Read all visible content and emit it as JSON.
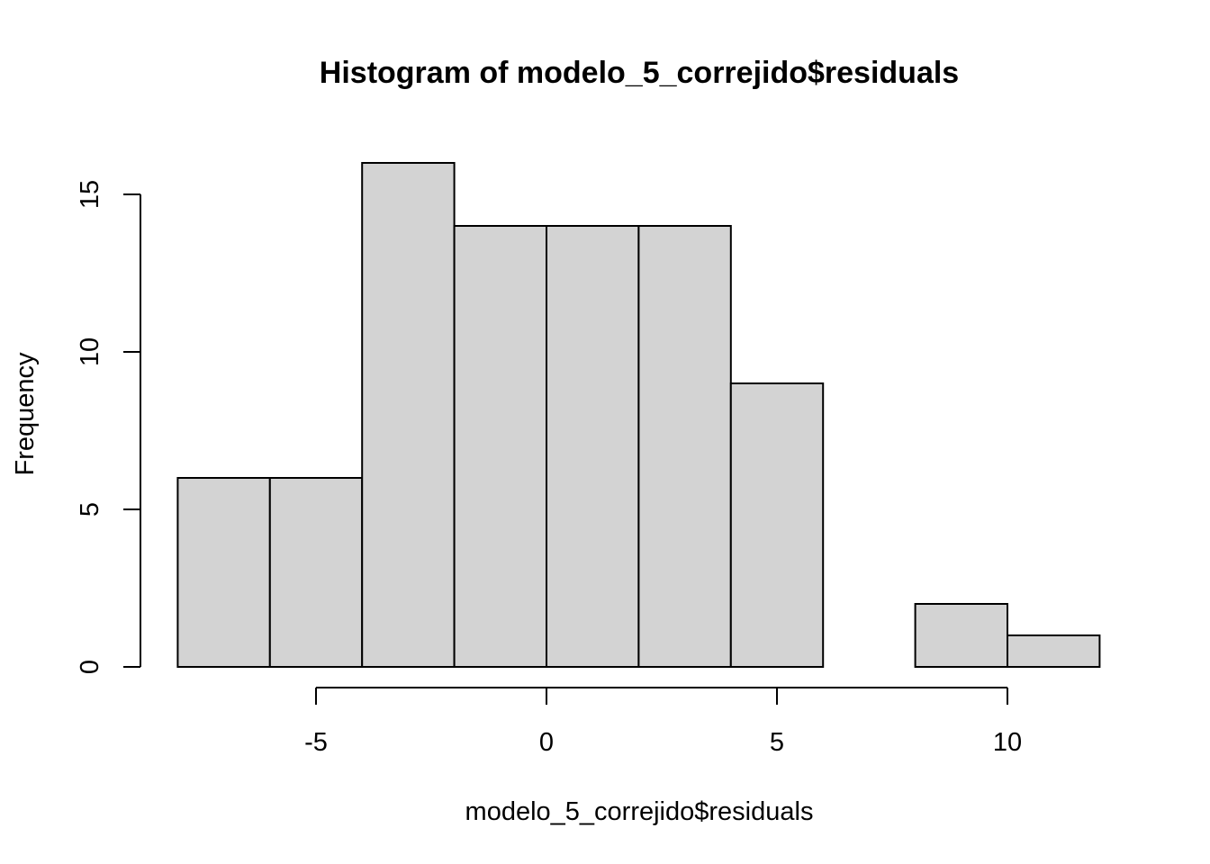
{
  "chart_data": {
    "type": "bar",
    "title": "Histogram of modelo_5_correjido$residuals",
    "xlabel": "modelo_5_correjido$residuals",
    "ylabel": "Frequency",
    "bins": [
      {
        "x0": -8,
        "x1": -6,
        "count": 6
      },
      {
        "x0": -6,
        "x1": -4,
        "count": 6
      },
      {
        "x0": -4,
        "x1": -2,
        "count": 16
      },
      {
        "x0": -2,
        "x1": 0,
        "count": 14
      },
      {
        "x0": 0,
        "x1": 2,
        "count": 14
      },
      {
        "x0": 2,
        "x1": 4,
        "count": 14
      },
      {
        "x0": 4,
        "x1": 6,
        "count": 9
      },
      {
        "x0": 6,
        "x1": 8,
        "count": 0
      },
      {
        "x0": 8,
        "x1": 10,
        "count": 2
      },
      {
        "x0": 10,
        "x1": 12,
        "count": 1
      }
    ],
    "xticks": [
      -5,
      0,
      5,
      10
    ],
    "yticks": [
      0,
      5,
      10,
      15
    ],
    "xlim": [
      -8,
      12
    ],
    "ylim": [
      0,
      16
    ],
    "bar_color": "#d3d3d3",
    "edge_color": "#000000",
    "grid": false
  }
}
